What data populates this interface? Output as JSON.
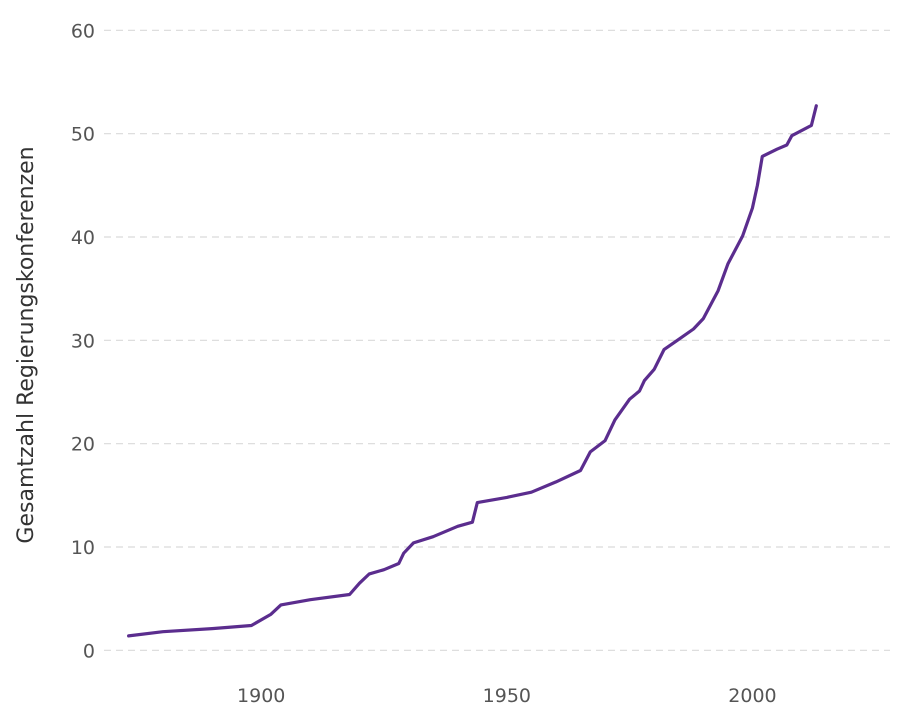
{
  "chart_data": {
    "type": "line",
    "title": "",
    "xlabel": "",
    "ylabel": "Gesamtzahl Regierungskonferenzen",
    "xlim": [
      1868,
      2028
    ],
    "ylim": [
      -2,
      61
    ],
    "x_ticks": [
      1900,
      1950,
      2000
    ],
    "x_tick_labels": [
      "1900",
      "1950",
      "2000"
    ],
    "y_ticks": [
      0,
      10,
      20,
      30,
      40,
      50,
      60
    ],
    "y_tick_labels": [
      "0",
      "10",
      "20",
      "30",
      "40",
      "50",
      "60"
    ],
    "grid": "horizontal dashed",
    "line_color": "#5b2d8e",
    "series": [
      {
        "x": [
          1873,
          1880,
          1890,
          1898,
          1902,
          1904,
          1910,
          1918,
          1920,
          1922,
          1925,
          1928,
          1929,
          1931,
          1935,
          1940,
          1943,
          1944,
          1950,
          1955,
          1960,
          1965,
          1967,
          1970,
          1972,
          1975,
          1977,
          1978,
          1980,
          1982,
          1985,
          1988,
          1990,
          1993,
          1995,
          1998,
          2000,
          2001,
          2002,
          2005,
          2007,
          2008,
          2012,
          2013
        ],
        "y": [
          1.4,
          1.8,
          2.1,
          2.4,
          3.5,
          4.4,
          4.9,
          5.4,
          6.5,
          7.4,
          7.8,
          8.4,
          9.4,
          10.4,
          11.0,
          12.0,
          12.4,
          14.3,
          14.8,
          15.3,
          16.3,
          17.4,
          19.2,
          20.3,
          22.3,
          24.3,
          25.1,
          26.1,
          27.2,
          29.1,
          30.1,
          31.1,
          32.1,
          34.8,
          37.4,
          40.1,
          42.8,
          45.0,
          47.8,
          48.5,
          48.9,
          49.8,
          50.8,
          52.7
        ]
      }
    ]
  }
}
